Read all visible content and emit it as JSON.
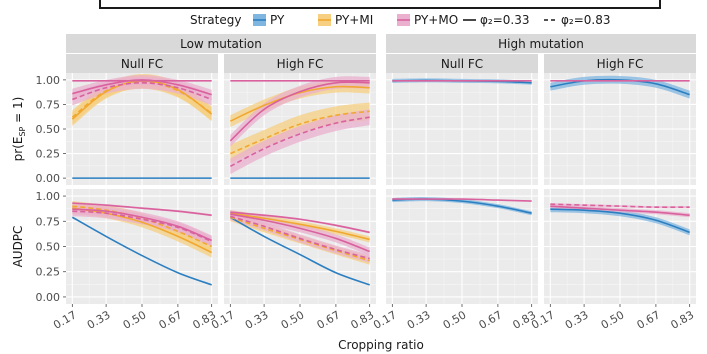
{
  "chart_data": {
    "type": "line",
    "legend": {
      "title": "Strategy",
      "position": "top",
      "strategies": [
        {
          "key": "PY",
          "label": "PY",
          "color": "#2b7fc1",
          "fill": "#7fb6e0"
        },
        {
          "key": "PYMI",
          "label": "PY+MI",
          "color": "#f0a830",
          "fill": "#f6cf80"
        },
        {
          "key": "PYMO",
          "label": "PY+MO",
          "color": "#d9629e",
          "fill": "#eab0cd"
        }
      ],
      "linetypes": [
        {
          "key": "solid",
          "label": "φ₂=0.33"
        },
        {
          "key": "dashed",
          "label": "φ₂=0.83"
        }
      ]
    },
    "columns": [
      {
        "group": "Low mutation",
        "fc": "Null FC"
      },
      {
        "group": "Low mutation",
        "fc": "High FC"
      },
      {
        "group": "High mutation",
        "fc": "Null FC"
      },
      {
        "group": "High mutation",
        "fc": "High FC"
      }
    ],
    "rows": [
      {
        "ylabel": "pr(E_SP = 1)",
        "ylabel_main": "pr(E",
        "ylabel_sub": "SP",
        "ylabel_tail": " = 1)"
      },
      {
        "ylabel": "AUDPC"
      }
    ],
    "grid": true,
    "xlabel": "Cropping ratio",
    "x_ticks": [
      0.17,
      0.33,
      0.5,
      0.67,
      0.83
    ],
    "x_tick_labels": [
      "0.17",
      "0.33",
      "0.50",
      "0.67",
      "0.83"
    ],
    "xlim": [
      0.14,
      0.86
    ],
    "y_ticks": [
      0,
      0.25,
      0.5,
      0.75,
      1.0
    ],
    "y_tick_labels": [
      "0.00",
      "0.25",
      "0.50",
      "0.75",
      "1.00"
    ],
    "ylim": [
      -0.07,
      1.07
    ],
    "x": [
      0.17,
      0.33,
      0.5,
      0.67,
      0.83
    ],
    "panels": [
      {
        "row": 0,
        "col": 0,
        "series": [
          {
            "strategy": "PY",
            "linetype": "solid",
            "y": [
              0.0,
              0.0,
              0.0,
              0.0,
              0.0
            ],
            "band": 0.005
          },
          {
            "strategy": "PYMI",
            "linetype": "solid",
            "y": [
              0.6,
              0.88,
              0.99,
              0.9,
              0.65
            ],
            "band": 0.07
          },
          {
            "strategy": "PYMI",
            "linetype": "dashed",
            "y": [
              0.62,
              0.89,
              0.98,
              0.89,
              0.66
            ],
            "band": 0.07
          },
          {
            "strategy": "PYMO",
            "linetype": "solid",
            "y": [
              0.86,
              0.95,
              1.0,
              0.95,
              0.85
            ],
            "band": 0.05
          },
          {
            "strategy": "PYMO",
            "linetype": "dashed",
            "y": [
              0.8,
              0.92,
              0.97,
              0.92,
              0.8
            ],
            "band": 0.06
          },
          {
            "strategy": "PYMO",
            "linetype": "solid",
            "y": [
              0.99,
              0.99,
              0.99,
              0.99,
              0.99
            ],
            "band": 0.004
          }
        ]
      },
      {
        "row": 0,
        "col": 1,
        "series": [
          {
            "strategy": "PY",
            "linetype": "solid",
            "y": [
              0.0,
              0.0,
              0.0,
              0.0,
              0.0
            ],
            "band": 0.005
          },
          {
            "strategy": "PYMI",
            "linetype": "solid",
            "y": [
              0.58,
              0.74,
              0.87,
              0.93,
              0.92
            ],
            "band": 0.06
          },
          {
            "strategy": "PYMI",
            "linetype": "dashed",
            "y": [
              0.25,
              0.4,
              0.55,
              0.64,
              0.68
            ],
            "band": 0.09
          },
          {
            "strategy": "PYMO",
            "linetype": "solid",
            "y": [
              0.38,
              0.7,
              0.88,
              0.97,
              0.97
            ],
            "band": 0.06
          },
          {
            "strategy": "PYMO",
            "linetype": "dashed",
            "y": [
              0.12,
              0.3,
              0.45,
              0.56,
              0.62
            ],
            "band": 0.08
          },
          {
            "strategy": "PYMO",
            "linetype": "solid",
            "y": [
              0.99,
              0.99,
              0.99,
              0.99,
              0.99
            ],
            "band": 0.004
          }
        ]
      },
      {
        "row": 0,
        "col": 2,
        "series": [
          {
            "strategy": "PY",
            "linetype": "solid",
            "y": [
              0.99,
              0.995,
              0.99,
              0.985,
              0.97
            ],
            "band": 0.02
          },
          {
            "strategy": "PYMO",
            "linetype": "solid",
            "y": [
              0.99,
              0.99,
              0.99,
              0.99,
              0.99
            ],
            "band": 0.004
          }
        ]
      },
      {
        "row": 0,
        "col": 3,
        "series": [
          {
            "strategy": "PY",
            "linetype": "solid",
            "y": [
              0.93,
              0.99,
              1.0,
              0.96,
              0.85
            ],
            "band": 0.04
          },
          {
            "strategy": "PYMO",
            "linetype": "solid",
            "y": [
              0.99,
              0.99,
              0.99,
              0.99,
              0.99
            ],
            "band": 0.004
          }
        ]
      },
      {
        "row": 1,
        "col": 0,
        "series": [
          {
            "strategy": "PY",
            "linetype": "solid",
            "y": [
              0.79,
              0.6,
              0.41,
              0.24,
              0.12
            ],
            "band": 0.005
          },
          {
            "strategy": "PYMI",
            "linetype": "solid",
            "y": [
              0.88,
              0.83,
              0.74,
              0.6,
              0.44
            ],
            "band": 0.05
          },
          {
            "strategy": "PYMI",
            "linetype": "dashed",
            "y": [
              0.9,
              0.86,
              0.78,
              0.65,
              0.5
            ],
            "band": 0.05
          },
          {
            "strategy": "PYMO",
            "linetype": "solid",
            "y": [
              0.87,
              0.85,
              0.79,
              0.7,
              0.56
            ],
            "band": 0.05
          },
          {
            "strategy": "PYMO",
            "linetype": "dashed",
            "y": [
              0.85,
              0.83,
              0.77,
              0.69,
              0.55
            ],
            "band": 0.05
          },
          {
            "strategy": "PYMO",
            "linetype": "solid",
            "y": [
              0.93,
              0.91,
              0.88,
              0.85,
              0.81
            ],
            "band": 0.01
          }
        ]
      },
      {
        "row": 1,
        "col": 1,
        "series": [
          {
            "strategy": "PY",
            "linetype": "solid",
            "y": [
              0.79,
              0.6,
              0.42,
              0.24,
              0.12
            ],
            "band": 0.005
          },
          {
            "strategy": "PYMI",
            "linetype": "solid",
            "y": [
              0.83,
              0.78,
              0.72,
              0.65,
              0.57
            ],
            "band": 0.03
          },
          {
            "strategy": "PYMI",
            "linetype": "dashed",
            "y": [
              0.79,
              0.68,
              0.57,
              0.46,
              0.36
            ],
            "band": 0.04
          },
          {
            "strategy": "PYMO",
            "linetype": "solid",
            "y": [
              0.82,
              0.76,
              0.68,
              0.58,
              0.45
            ],
            "band": 0.04
          },
          {
            "strategy": "PYMO",
            "linetype": "dashed",
            "y": [
              0.8,
              0.7,
              0.58,
              0.47,
              0.38
            ],
            "band": 0.04
          },
          {
            "strategy": "PYMO",
            "linetype": "solid",
            "y": [
              0.84,
              0.81,
              0.77,
              0.71,
              0.64
            ],
            "band": 0.01
          }
        ]
      },
      {
        "row": 1,
        "col": 2,
        "series": [
          {
            "strategy": "PY",
            "linetype": "solid",
            "y": [
              0.96,
              0.97,
              0.95,
              0.9,
              0.83
            ],
            "band": 0.02
          },
          {
            "strategy": "PYMO",
            "linetype": "solid",
            "y": [
              0.97,
              0.97,
              0.97,
              0.96,
              0.95
            ],
            "band": 0.005
          }
        ]
      },
      {
        "row": 1,
        "col": 3,
        "series": [
          {
            "strategy": "PY",
            "linetype": "solid",
            "y": [
              0.87,
              0.86,
              0.83,
              0.76,
              0.64
            ],
            "band": 0.03
          },
          {
            "strategy": "PYMO",
            "linetype": "solid",
            "y": [
              0.9,
              0.88,
              0.86,
              0.84,
              0.81
            ],
            "band": 0.02
          },
          {
            "strategy": "PYMO",
            "linetype": "dashed",
            "y": [
              0.92,
              0.91,
              0.9,
              0.89,
              0.89
            ],
            "band": 0.01
          }
        ]
      }
    ]
  }
}
